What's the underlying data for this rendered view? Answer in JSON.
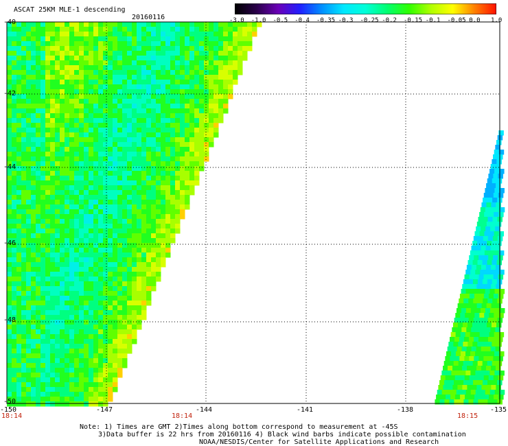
{
  "header": {
    "title": "ASCAT 25KM MLE-1 descending",
    "date": "20160116"
  },
  "colorbar": {
    "labels": [
      "-3.0",
      "-1.0",
      "-0.5",
      "-0.4",
      "-0.35",
      "-0.3",
      "-0.25",
      "-0.2",
      "-0.15",
      "-0.1",
      "-0.05",
      "0.0",
      "1.0"
    ],
    "colors": [
      "#000000",
      "#2a004a",
      "#6a00b8",
      "#2020ff",
      "#0090ff",
      "#00e8ff",
      "#00ffd8",
      "#00ff70",
      "#30ff00",
      "#b0ff00",
      "#ffff00",
      "#ff8000",
      "#ff1000"
    ]
  },
  "map": {
    "lat_labels": [
      "-40",
      "-42",
      "-44",
      "-46",
      "-48",
      "-50"
    ],
    "lon_labels": [
      "-150",
      "-147",
      "-144",
      "-141",
      "-138",
      "-135"
    ],
    "time_labels": [
      "18:14",
      "18:14",
      "18:15"
    ],
    "lat_range": [
      -50,
      -40
    ],
    "lon_range": [
      -150,
      -135
    ],
    "grid": true
  },
  "notes": {
    "line1": "Note: 1) Times are GMT 2)Times along bottom correspond to measurement at -45S",
    "line2": "3)Data buffer is 22 hrs from 20160116 4) Black wind barbs indicate possible contamination",
    "line3": "NOAA/NESDIS/Center for Satellite Applications and Research"
  }
}
